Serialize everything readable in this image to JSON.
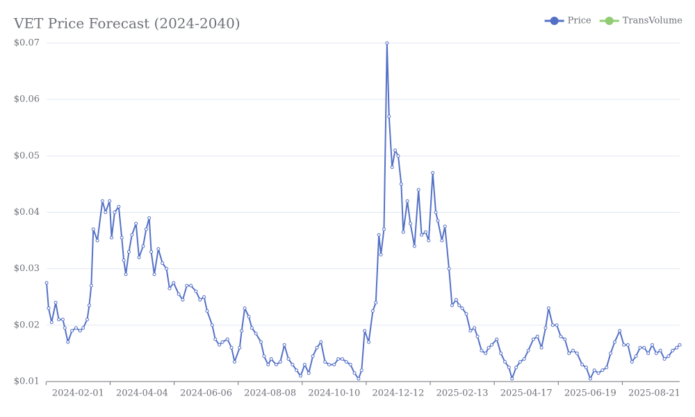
{
  "chart_data": {
    "type": "line",
    "title": "VET Price Forecast (2024-2040)",
    "x": [
      "2024-01-01",
      "2024-01-03",
      "2024-01-06",
      "2024-01-10",
      "2024-01-13",
      "2024-01-17",
      "2024-01-19",
      "2024-01-22",
      "2024-01-26",
      "2024-01-30",
      "2024-02-03",
      "2024-02-06",
      "2024-02-10",
      "2024-02-12",
      "2024-02-14",
      "2024-02-16",
      "2024-02-20",
      "2024-02-25",
      "2024-02-28",
      "2024-03-03",
      "2024-03-05",
      "2024-03-08",
      "2024-03-12",
      "2024-03-15",
      "2024-03-17",
      "2024-03-19",
      "2024-03-22",
      "2024-03-25",
      "2024-03-29",
      "2024-04-01",
      "2024-04-05",
      "2024-04-08",
      "2024-04-11",
      "2024-04-13",
      "2024-04-16",
      "2024-04-20",
      "2024-04-24",
      "2024-04-28",
      "2024-05-01",
      "2024-05-05",
      "2024-05-10",
      "2024-05-14",
      "2024-05-18",
      "2024-05-22",
      "2024-05-27",
      "2024-05-31",
      "2024-06-04",
      "2024-06-07",
      "2024-06-12",
      "2024-06-15",
      "2024-06-19",
      "2024-06-22",
      "2024-06-27",
      "2024-07-01",
      "2024-07-04",
      "2024-07-09",
      "2024-07-11",
      "2024-07-14",
      "2024-07-18",
      "2024-07-21",
      "2024-07-25",
      "2024-07-30",
      "2024-08-02",
      "2024-08-06",
      "2024-08-09",
      "2024-08-14",
      "2024-08-18",
      "2024-08-22",
      "2024-08-26",
      "2024-08-30",
      "2024-09-03",
      "2024-09-07",
      "2024-09-11",
      "2024-09-15",
      "2024-09-19",
      "2024-09-23",
      "2024-09-27",
      "2024-10-01",
      "2024-10-05",
      "2024-10-10",
      "2024-10-14",
      "2024-10-18",
      "2024-10-22",
      "2024-10-26",
      "2024-10-30",
      "2024-11-03",
      "2024-11-06",
      "2024-11-09",
      "2024-11-13",
      "2024-11-17",
      "2024-11-20",
      "2024-11-23",
      "2024-11-25",
      "2024-11-28",
      "2024-12-01",
      "2024-12-03",
      "2024-12-06",
      "2024-12-09",
      "2024-12-12",
      "2024-12-15",
      "2024-12-17",
      "2024-12-21",
      "2024-12-24",
      "2024-12-28",
      "2025-01-01",
      "2025-01-04",
      "2025-01-08",
      "2025-01-11",
      "2025-01-15",
      "2025-01-18",
      "2025-01-20",
      "2025-01-24",
      "2025-01-27",
      "2025-01-31",
      "2025-02-03",
      "2025-02-07",
      "2025-02-10",
      "2025-02-13",
      "2025-02-17",
      "2025-02-21",
      "2025-02-25",
      "2025-02-28",
      "2025-03-04",
      "2025-03-08",
      "2025-03-11",
      "2025-03-14",
      "2025-03-19",
      "2025-03-23",
      "2025-03-27",
      "2025-03-31",
      "2025-04-03",
      "2025-04-07",
      "2025-04-11",
      "2025-04-15",
      "2025-04-19",
      "2025-04-24",
      "2025-04-28",
      "2025-05-02",
      "2025-05-06",
      "2025-05-09",
      "2025-05-13",
      "2025-05-17",
      "2025-05-21",
      "2025-05-25",
      "2025-05-29",
      "2025-06-02",
      "2025-06-06",
      "2025-06-11",
      "2025-06-15",
      "2025-06-19",
      "2025-06-23",
      "2025-06-27",
      "2025-07-01",
      "2025-07-05",
      "2025-07-09",
      "2025-07-13",
      "2025-07-18",
      "2025-07-22",
      "2025-07-26",
      "2025-07-30",
      "2025-08-03",
      "2025-08-07",
      "2025-08-11",
      "2025-08-15",
      "2025-08-19",
      "2025-08-23",
      "2025-08-27",
      "2025-08-31",
      "2025-09-04",
      "2025-09-08",
      "2025-09-12",
      "2025-09-15"
    ],
    "series": [
      {
        "name": "Price",
        "color": "#5470c6",
        "values": [
          0.0275,
          0.023,
          0.0205,
          0.024,
          0.021,
          0.021,
          0.0195,
          0.017,
          0.019,
          0.0195,
          0.019,
          0.0195,
          0.021,
          0.0235,
          0.027,
          0.037,
          0.035,
          0.042,
          0.04,
          0.042,
          0.0355,
          0.04,
          0.041,
          0.0355,
          0.0315,
          0.029,
          0.033,
          0.036,
          0.038,
          0.032,
          0.034,
          0.037,
          0.039,
          0.033,
          0.029,
          0.0335,
          0.031,
          0.03,
          0.0265,
          0.0275,
          0.0255,
          0.0245,
          0.027,
          0.027,
          0.026,
          0.0245,
          0.025,
          0.0225,
          0.02,
          0.0175,
          0.0165,
          0.017,
          0.0175,
          0.016,
          0.0135,
          0.016,
          0.019,
          0.023,
          0.0215,
          0.0195,
          0.0185,
          0.017,
          0.0145,
          0.013,
          0.014,
          0.013,
          0.0135,
          0.0165,
          0.014,
          0.013,
          0.012,
          0.011,
          0.013,
          0.0115,
          0.0145,
          0.016,
          0.017,
          0.0135,
          0.013,
          0.013,
          0.014,
          0.014,
          0.0135,
          0.013,
          0.0115,
          0.0105,
          0.012,
          0.019,
          0.017,
          0.0225,
          0.024,
          0.036,
          0.0325,
          0.037,
          0.07,
          0.057,
          0.048,
          0.051,
          0.05,
          0.045,
          0.0365,
          0.042,
          0.038,
          0.034,
          0.044,
          0.036,
          0.0365,
          0.035,
          0.047,
          0.04,
          0.0385,
          0.035,
          0.0375,
          0.03,
          0.0235,
          0.0245,
          0.0235,
          0.023,
          0.022,
          0.019,
          0.0195,
          0.018,
          0.0155,
          0.015,
          0.016,
          0.0165,
          0.0175,
          0.015,
          0.0135,
          0.0125,
          0.0105,
          0.0125,
          0.0135,
          0.014,
          0.0155,
          0.0175,
          0.018,
          0.016,
          0.0195,
          0.023,
          0.02,
          0.02,
          0.018,
          0.0175,
          0.015,
          0.0155,
          0.015,
          0.013,
          0.0125,
          0.0105,
          0.012,
          0.0115,
          0.012,
          0.0125,
          0.015,
          0.017,
          0.019,
          0.0165,
          0.0165,
          0.0135,
          0.0145,
          0.016,
          0.016,
          0.015,
          0.0165,
          0.015,
          0.0155,
          0.014,
          0.0145,
          0.0155,
          0.016,
          0.0165
        ]
      },
      {
        "name": "TransVolume",
        "color": "#91cc75"
      }
    ],
    "xlim": [
      "2024-01-01",
      "2025-09-15"
    ],
    "xticks": [
      "2024-02-01",
      "2024-04-04",
      "2024-06-06",
      "2024-08-08",
      "2024-10-10",
      "2024-12-12",
      "2025-02-13",
      "2025-04-17",
      "2025-06-19",
      "2025-08-21"
    ],
    "ylim": [
      0.01,
      0.07
    ],
    "yticks": [
      {
        "value": 0.01,
        "label": "$0.01"
      },
      {
        "value": 0.02,
        "label": "$0.02"
      },
      {
        "value": 0.03,
        "label": "$0.03"
      },
      {
        "value": 0.04,
        "label": "$0.04"
      },
      {
        "value": 0.05,
        "label": "$0.05"
      },
      {
        "value": 0.06,
        "label": "$0.06"
      },
      {
        "value": 0.07,
        "label": "$0.07"
      }
    ],
    "grid": true,
    "legend": "top-right"
  }
}
